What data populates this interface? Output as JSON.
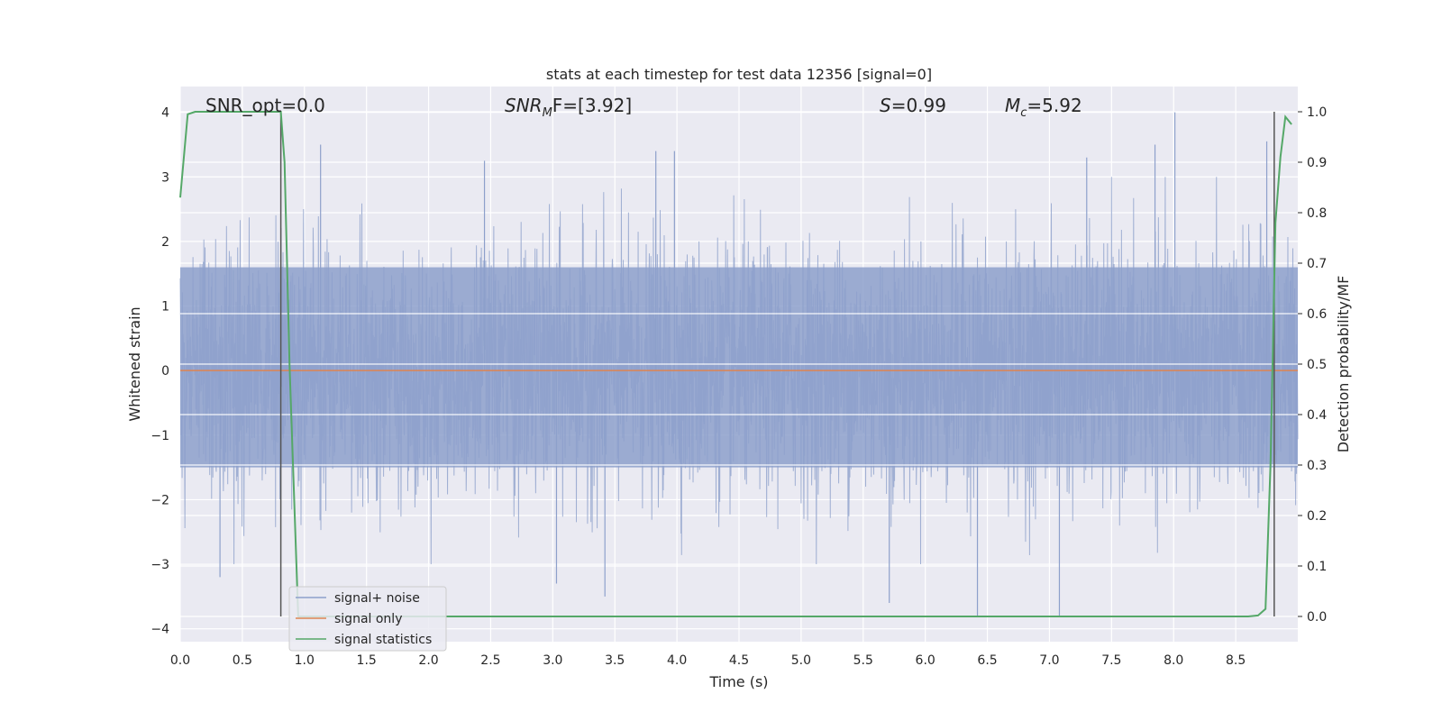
{
  "chart_data": {
    "type": "line",
    "title": "stats at each timestep for test data 12356 [signal=0]",
    "xlabel": "Time (s)",
    "ylabel_left": "Whitened strain",
    "ylabel_right": "Detection probability/MF",
    "xlim": [
      0.0,
      9.0
    ],
    "ylim_left": [
      -4.2,
      4.4
    ],
    "ylim_right": [
      -0.05,
      1.05
    ],
    "x_ticks": [
      "0.0",
      "0.5",
      "1.0",
      "1.5",
      "2.0",
      "2.5",
      "3.0",
      "3.5",
      "4.0",
      "4.5",
      "5.0",
      "5.5",
      "6.0",
      "6.5",
      "7.0",
      "7.5",
      "8.0",
      "8.5"
    ],
    "y_ticks_left": [
      "4",
      "3",
      "2",
      "1",
      "0",
      "−1",
      "−2",
      "−3",
      "−4"
    ],
    "y_ticks_right": [
      "1.0",
      "0.9",
      "0.8",
      "0.7",
      "0.6",
      "0.5",
      "0.4",
      "0.3",
      "0.2",
      "0.1",
      "0.0"
    ],
    "grid": true,
    "legend_position": "lower-left",
    "annotations": {
      "snr_opt": "SNR_opt=0.0",
      "snr_mf_label": "SNR",
      "snr_mf_sub": "M",
      "snr_mf_value": "F=[3.92]",
      "s_label": "S",
      "s_value": "=0.99",
      "mc_label": "M",
      "mc_sub": "c",
      "mc_value": "=5.92"
    },
    "series": [
      {
        "name": "signal+ noise",
        "color": "#8da0cb",
        "axis": "left",
        "kind": "whitened noise, amplitude ~±1.6 with spikes to ±4"
      },
      {
        "name": "signal only",
        "color": "#dd8452",
        "axis": "left",
        "values_constant": 0.0
      },
      {
        "name": "signal statistics",
        "color": "#55a868",
        "axis": "right",
        "x": [
          0.0,
          0.06,
          0.12,
          0.2,
          0.5,
          0.79,
          0.81,
          0.84,
          0.88,
          0.95,
          1.0,
          2.0,
          5.0,
          8.0,
          8.6,
          8.68,
          8.74,
          8.78,
          8.82,
          8.86,
          8.9,
          8.95
        ],
        "y": [
          0.83,
          0.995,
          1.0,
          1.0,
          1.0,
          1.0,
          1.0,
          0.9,
          0.5,
          0.0,
          0.0,
          0.0,
          0.0,
          0.0,
          0.0,
          0.002,
          0.015,
          0.3,
          0.78,
          0.91,
          0.99,
          0.975
        ]
      }
    ],
    "vertical_lines": [
      {
        "x": 0.81,
        "axis": "right",
        "from": 0.0,
        "to": 1.0
      },
      {
        "x": 8.81,
        "axis": "right",
        "from": 0.0,
        "to": 1.0
      }
    ],
    "spikes": [
      {
        "x": 0.32,
        "y": -3.2
      },
      {
        "x": 1.13,
        "y": 3.5
      },
      {
        "x": 2.45,
        "y": 3.25
      },
      {
        "x": 3.03,
        "y": -3.3
      },
      {
        "x": 3.42,
        "y": -3.5
      },
      {
        "x": 3.83,
        "y": 3.4
      },
      {
        "x": 3.98,
        "y": 3.4
      },
      {
        "x": 5.71,
        "y": -3.6
      },
      {
        "x": 6.42,
        "y": -3.8
      },
      {
        "x": 7.08,
        "y": -3.8
      },
      {
        "x": 7.3,
        "y": 3.3
      },
      {
        "x": 7.85,
        "y": 3.5
      },
      {
        "x": 8.01,
        "y": 4.0
      },
      {
        "x": 8.75,
        "y": 3.55
      }
    ]
  }
}
